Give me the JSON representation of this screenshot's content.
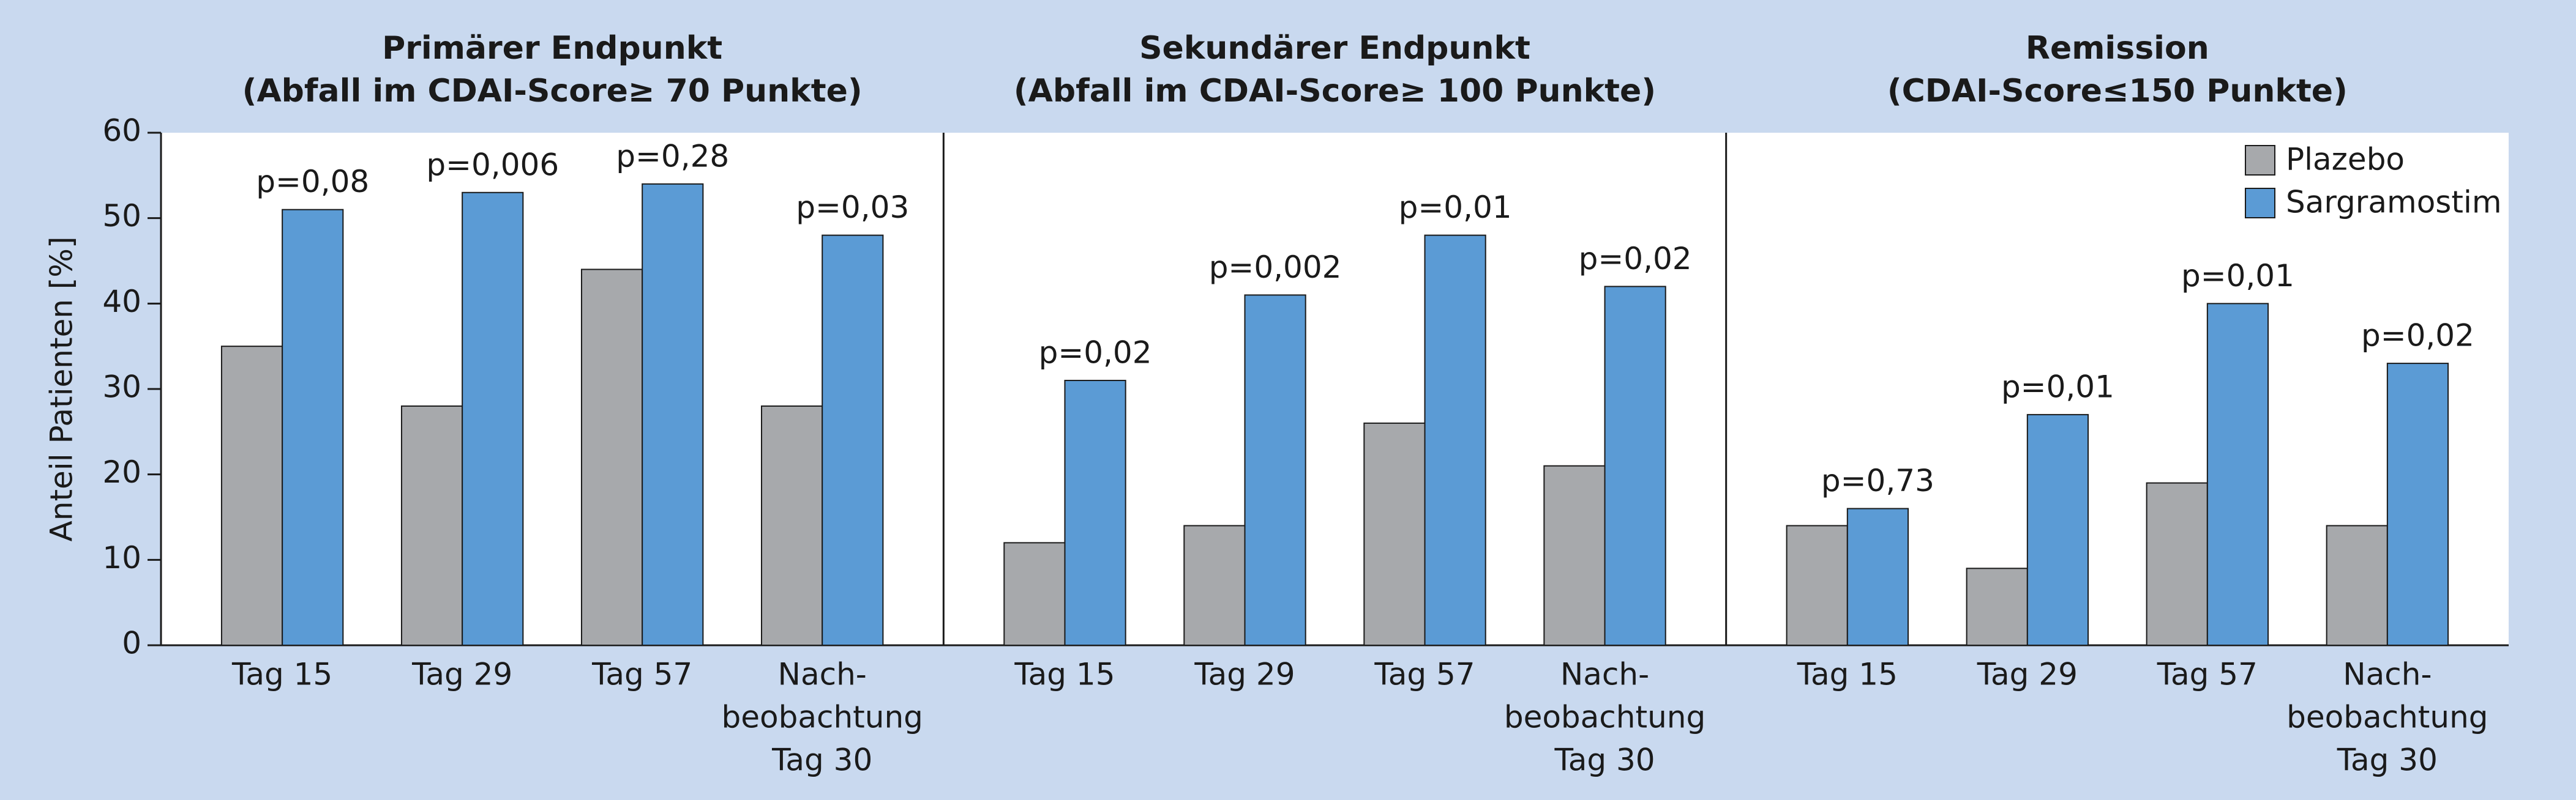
{
  "chart_data": {
    "type": "bar",
    "ylabel": "Anteil Patienten [%]",
    "ylim": [
      0,
      60
    ],
    "yticks": [
      0,
      10,
      20,
      30,
      40,
      50,
      60
    ],
    "legend_position": "top-right",
    "series": [
      {
        "name": "Plazebo",
        "color": "#a7a9ac"
      },
      {
        "name": "Sargramostim",
        "color": "#5b9bd5"
      }
    ],
    "panels": [
      {
        "title": "Primärer Endpunkt",
        "subtitle": "(Abfall im CDAI-Score≥ 70 Punkte)",
        "categories": [
          "Tag 15",
          "Tag 29",
          "Tag 57",
          [
            "Nach-",
            "beobachtung",
            "Tag 30"
          ]
        ],
        "values": [
          [
            35,
            28,
            44,
            28
          ],
          [
            51,
            53,
            54,
            48
          ]
        ],
        "annotations": [
          "p=0,08",
          "p=0,006",
          "p=0,28",
          "p=0,03"
        ]
      },
      {
        "title": "Sekundärer Endpunkt",
        "subtitle": "(Abfall im CDAI-Score≥ 100 Punkte)",
        "categories": [
          "Tag 15",
          "Tag 29",
          "Tag 57",
          [
            "Nach-",
            "beobachtung",
            "Tag 30"
          ]
        ],
        "values": [
          [
            12,
            14,
            26,
            21
          ],
          [
            31,
            41,
            48,
            42
          ]
        ],
        "annotations": [
          "p=0,02",
          "p=0,002",
          "p=0,01",
          "p=0,02"
        ]
      },
      {
        "title": "Remission",
        "subtitle": "(CDAI-Score≤150 Punkte)",
        "categories": [
          "Tag 15",
          "Tag 29",
          "Tag 57",
          [
            "Nach-",
            "beobachtung",
            "Tag 30"
          ]
        ],
        "values": [
          [
            14,
            9,
            19,
            14
          ],
          [
            16,
            27,
            40,
            33
          ]
        ],
        "annotations": [
          "p=0,73",
          "p=0,01",
          "p=0,01",
          "p=0,02"
        ]
      }
    ]
  }
}
